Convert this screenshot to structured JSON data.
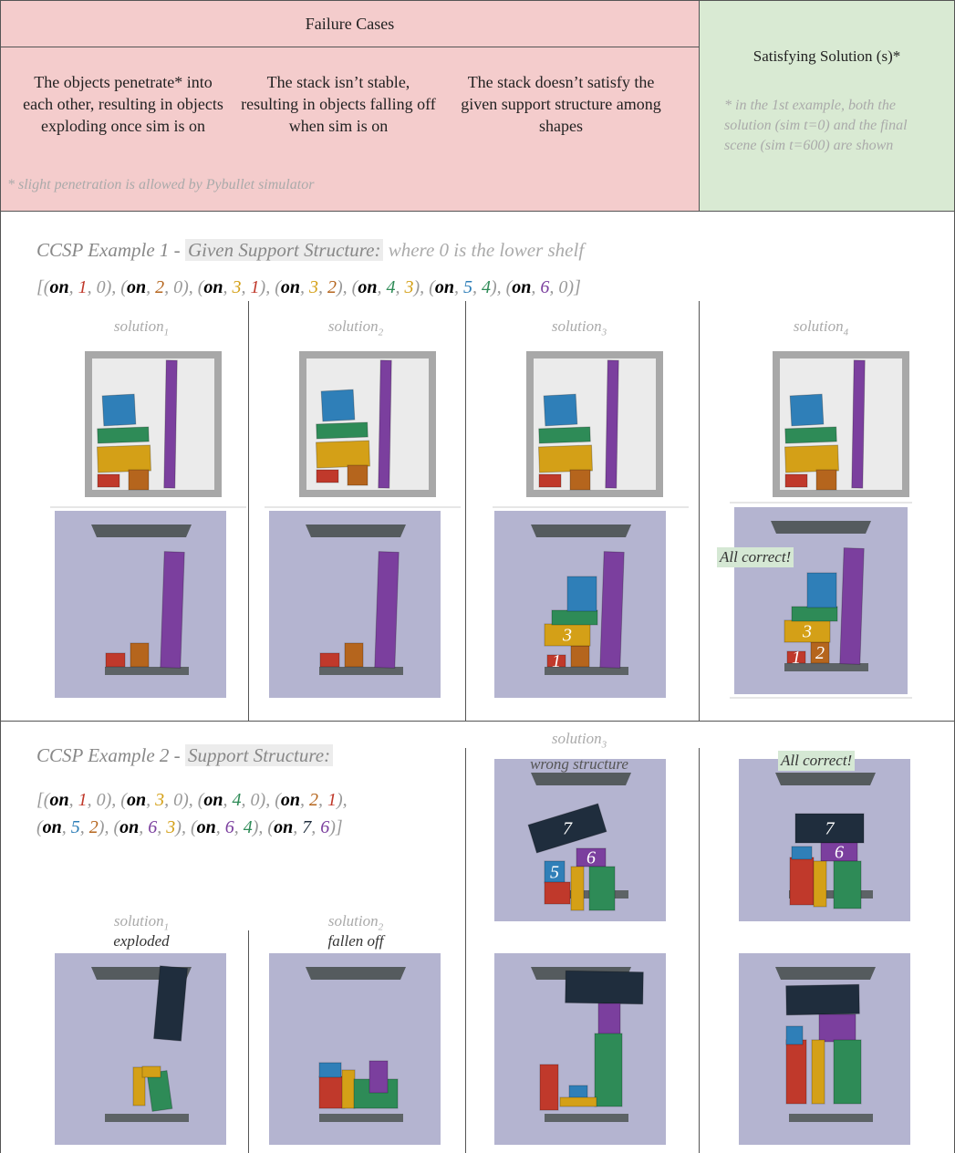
{
  "header": {
    "failure_title": "Failure Cases",
    "failure_cases": [
      "The objects penetrate* into each other, resulting in objects exploding once sim is on",
      "The stack isn’t stable, resulting in objects falling off when sim is on",
      "The stack doesn’t satisfy the given support structure among shapes"
    ],
    "failure_note": "* slight penetration is allowed by Pybullet simulator",
    "success_title": "Satisfying Solution (s)*",
    "success_note": "* in the 1st example, both the solution (sim t=0) and the final scene (sim t=600) are shown"
  },
  "punctuation": {
    "open": "[",
    "close": "]",
    "left": "(",
    "sep": ", ",
    "right": ")"
  },
  "object_colors": {
    "0": "#999999",
    "1": "#c0392b",
    "2": "#b5651d",
    "3": "#d4a017",
    "4": "#2e8b57",
    "5": "#2f7fb8",
    "6": "#7b3f9e",
    "7": "#1f2d3d"
  },
  "examples": [
    {
      "title": "CCSP Example 1 - ",
      "structure_label": "Given Support Structure:",
      "structure_note": "where 0 is the lower shelf",
      "relations": [
        [
          "on",
          "1",
          "0"
        ],
        [
          "on",
          "2",
          "0"
        ],
        [
          "on",
          "3",
          "1"
        ],
        [
          "on",
          "3",
          "2"
        ],
        [
          "on",
          "4",
          "3"
        ],
        [
          "on",
          "5",
          "4"
        ],
        [
          "on",
          "6",
          "0"
        ]
      ],
      "solutions": [
        {
          "label": "solution",
          "index": "1"
        },
        {
          "label": "solution",
          "index": "2"
        },
        {
          "label": "solution",
          "index": "3",
          "block_labels": [
            "3",
            "1"
          ]
        },
        {
          "label": "solution",
          "index": "4",
          "verdict": "All correct!",
          "block_labels": [
            "3",
            "1",
            "2"
          ]
        }
      ]
    },
    {
      "title": "CCSP Example 2 - ",
      "structure_label": "Support Structure:",
      "relations": [
        [
          "on",
          "1",
          "0"
        ],
        [
          "on",
          "3",
          "0"
        ],
        [
          "on",
          "4",
          "0"
        ],
        [
          "on",
          "2",
          "1"
        ],
        [
          "on",
          "5",
          "2"
        ],
        [
          "on",
          "6",
          "3"
        ],
        [
          "on",
          "6",
          "4"
        ],
        [
          "on",
          "7",
          "6"
        ]
      ],
      "solutions": [
        {
          "label": "solution",
          "index": "1",
          "verdict": "exploded"
        },
        {
          "label": "solution",
          "index": "2",
          "verdict": "fallen off"
        },
        {
          "label": "solution",
          "index": "3",
          "verdict": "wrong structure",
          "block_labels": [
            "7",
            "6",
            "5"
          ]
        },
        {
          "verdict": "All correct!",
          "block_labels": [
            "7",
            "6"
          ]
        }
      ]
    }
  ]
}
